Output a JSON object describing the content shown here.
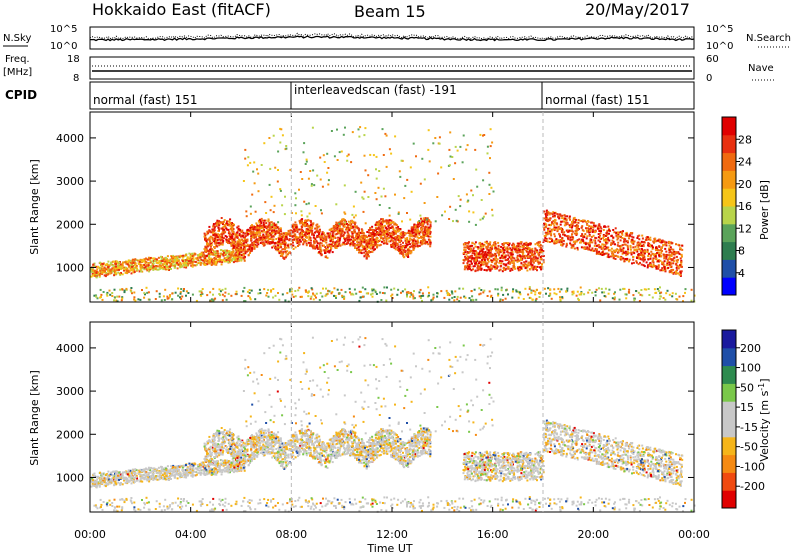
{
  "header": {
    "station": "Hokkaido East (fitACF)",
    "beam": "Beam 15",
    "date": "20/May/2017"
  },
  "noise_panel": {
    "left_label": "N.Sky",
    "right_label": "N.Search",
    "left_ticks": [
      "10^5",
      "10^0"
    ],
    "right_ticks": [
      "10^5",
      "10^0"
    ]
  },
  "freq_panel": {
    "left_label_1": "Freq.",
    "left_label_2": "[MHz]",
    "left_ticks": [
      "18",
      "8"
    ],
    "right_label": "Nave",
    "right_ticks": [
      "60",
      "0"
    ]
  },
  "cpid_panel": {
    "label": "CPID",
    "segments": [
      {
        "text": "normal (fast) 151",
        "start": 0,
        "end": 8
      },
      {
        "text": "interleavedscan (fast) -191",
        "start": 8,
        "end": 18
      },
      {
        "text": "normal (fast) 151",
        "start": 18,
        "end": 24
      }
    ]
  },
  "colors": {
    "power": [
      "#0000ff",
      "#1f4fa8",
      "#2e7d4f",
      "#5aa35a",
      "#b8d44a",
      "#f5c518",
      "#f59a12",
      "#f06a10",
      "#e83010",
      "#e00000"
    ],
    "velocity": [
      "#e00000",
      "#f04a10",
      "#f58a12",
      "#f5b51a",
      "#c8c8c8",
      "#c8c8c8",
      "#7ac84a",
      "#2e8b4f",
      "#1f4fa8",
      "#1a1a9e"
    ]
  },
  "chart_data": [
    {
      "type": "heatmap",
      "name": "power",
      "xlabel": "",
      "ylabel": "Slant Range [km]",
      "xlim": [
        0,
        24
      ],
      "ylim": [
        200,
        4600
      ],
      "y_ticks": [
        1000,
        2000,
        3000,
        4000
      ],
      "colorbar": {
        "label": "Power [dB]",
        "range": [
          0,
          32
        ],
        "ticks": [
          4,
          8,
          12,
          16,
          20,
          24,
          28
        ]
      }
    },
    {
      "type": "heatmap",
      "name": "velocity",
      "xlabel": "Time UT",
      "ylabel": "Slant Range [km]",
      "xlim": [
        0,
        24
      ],
      "ylim": [
        200,
        4600
      ],
      "x_ticks": [
        "00:00",
        "04:00",
        "08:00",
        "12:00",
        "16:00",
        "20:00",
        "00:00"
      ],
      "y_ticks": [
        1000,
        2000,
        3000,
        4000
      ],
      "colorbar": {
        "label": "Velocity [m s^-1]",
        "ticks": [
          200,
          100,
          50,
          15,
          -15,
          -50,
          -100,
          -200
        ]
      }
    }
  ]
}
